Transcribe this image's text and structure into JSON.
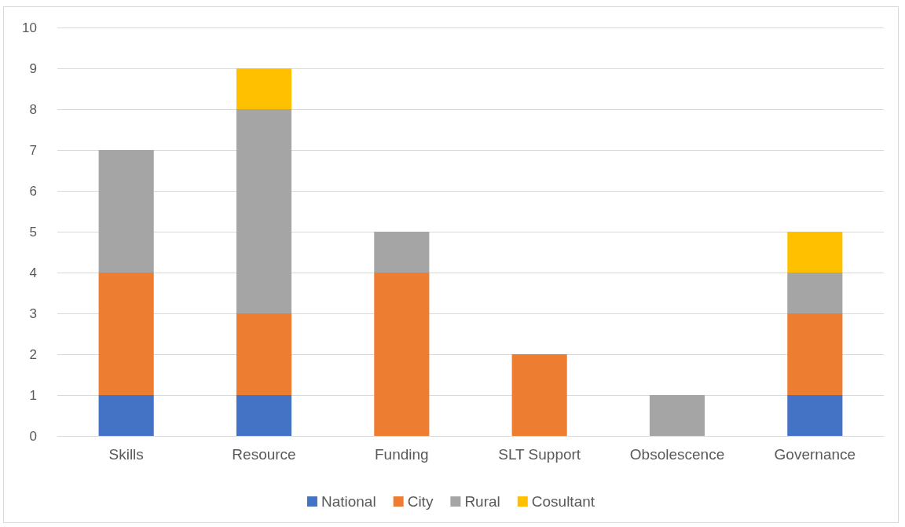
{
  "chart_data": {
    "type": "bar",
    "stacked": true,
    "categories": [
      "Skills",
      "Resource",
      "Funding",
      "SLT Support",
      "Obsolescence",
      "Governance"
    ],
    "series": [
      {
        "name": "National",
        "color": "#4472c4",
        "values": [
          1,
          1,
          0,
          0,
          0,
          1
        ]
      },
      {
        "name": "City",
        "color": "#ed7d31",
        "values": [
          3,
          2,
          4,
          2,
          0,
          2
        ]
      },
      {
        "name": "Rural",
        "color": "#a5a5a5",
        "values": [
          3,
          5,
          1,
          0,
          1,
          1
        ]
      },
      {
        "name": "Cosultant",
        "color": "#ffc000",
        "values": [
          0,
          1,
          0,
          0,
          0,
          1
        ]
      }
    ],
    "ylim": [
      0,
      10
    ],
    "yticks": [
      0,
      1,
      2,
      3,
      4,
      5,
      6,
      7,
      8,
      9,
      10
    ],
    "grid": "y",
    "legend": "bottom"
  }
}
